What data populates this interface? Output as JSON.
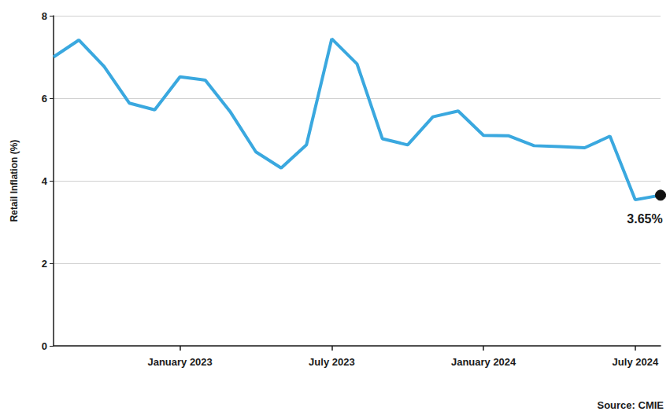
{
  "chart_data": {
    "type": "line",
    "y_label": "Retail Inflation (%)",
    "categories": [
      null,
      null,
      null,
      null,
      null,
      "January 2023",
      null,
      null,
      null,
      null,
      null,
      "July 2023",
      null,
      null,
      null,
      null,
      null,
      "January 2024",
      null,
      null,
      null,
      null,
      null,
      "July 2024",
      null
    ],
    "values": [
      7.0,
      7.41,
      6.77,
      5.88,
      5.72,
      6.52,
      6.44,
      5.66,
      4.7,
      4.31,
      4.87,
      7.44,
      6.83,
      5.02,
      4.87,
      5.55,
      5.69,
      5.1,
      5.09,
      4.85,
      4.83,
      4.8,
      5.08,
      3.54,
      3.65
    ],
    "color": "#3aa8df",
    "ylim": [
      0,
      8
    ],
    "yticks": [
      0,
      2,
      4,
      6,
      8
    ],
    "grid": true,
    "annotations": [
      "3.65%"
    ],
    "source": "Source: CMIE"
  }
}
